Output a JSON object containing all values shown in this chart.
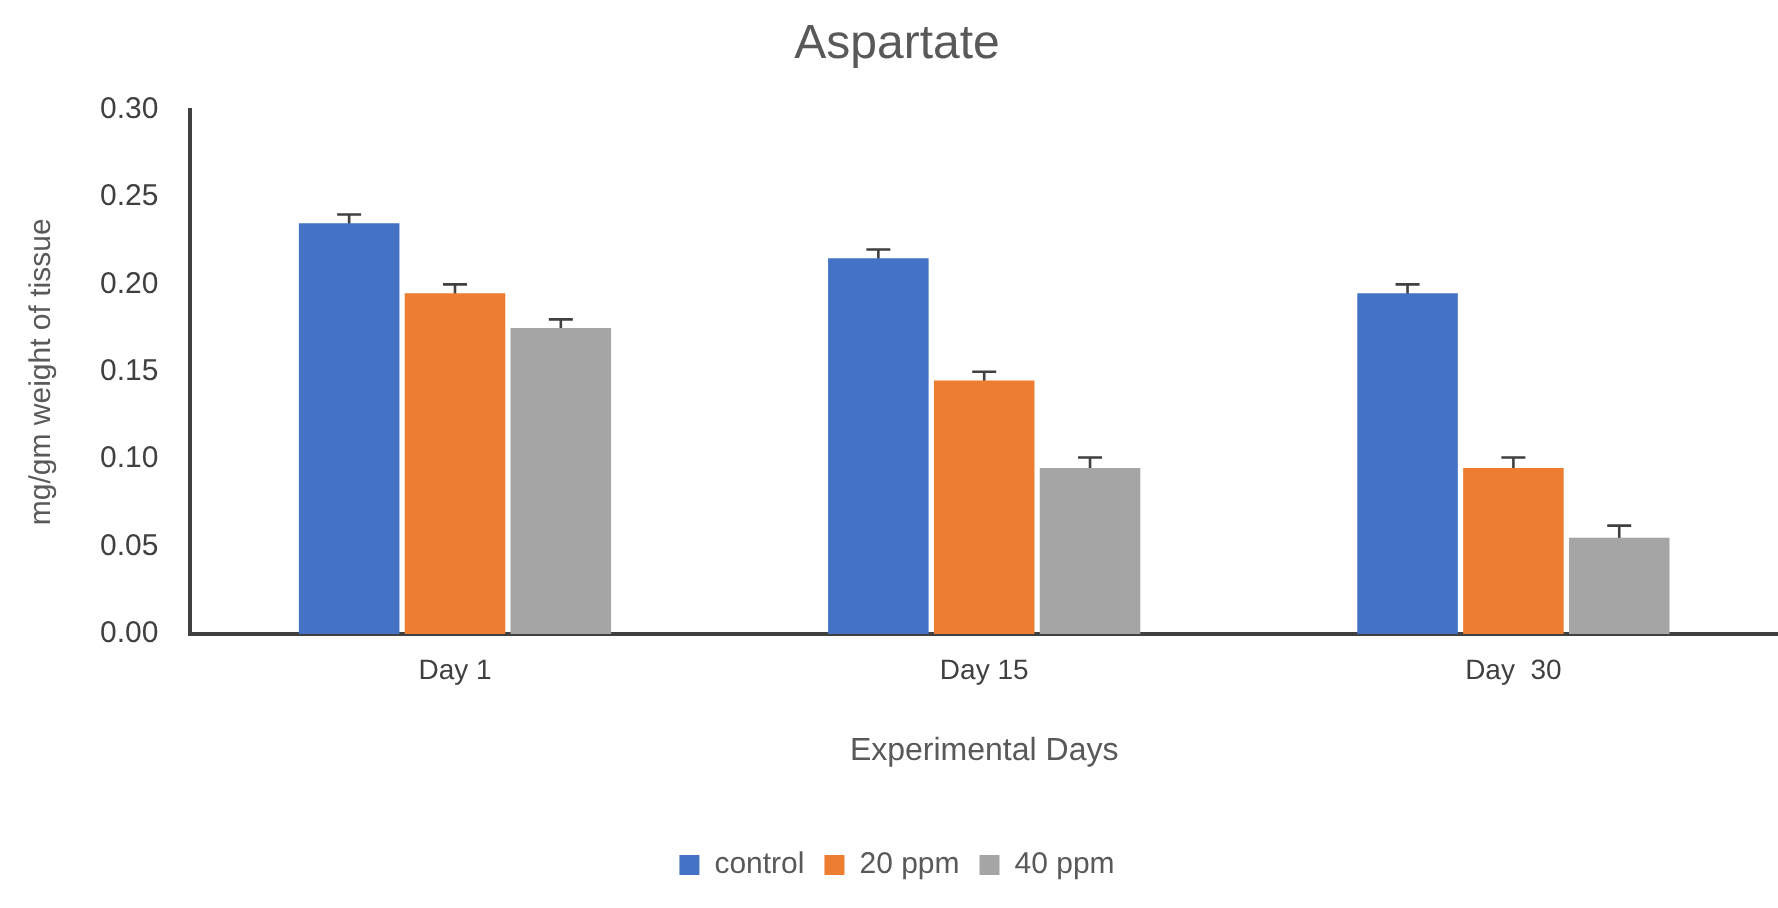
{
  "chart_data": {
    "type": "bar",
    "title": "Aspartate",
    "xlabel": "Experimental Days",
    "ylabel": "mg/gm weight of tissue",
    "categories": [
      "Day 1",
      "Day 15",
      "Day  30"
    ],
    "series": [
      {
        "name": "control",
        "color": "#4472c4",
        "values": [
          0.235,
          0.215,
          0.195
        ],
        "errors": [
          0.005,
          0.005,
          0.005
        ]
      },
      {
        "name": "20 ppm",
        "color": "#ed7d31",
        "values": [
          0.195,
          0.145,
          0.095
        ],
        "errors": [
          0.005,
          0.005,
          0.006
        ]
      },
      {
        "name": "40 ppm",
        "color": "#a5a5a5",
        "values": [
          0.175,
          0.095,
          0.055
        ],
        "errors": [
          0.005,
          0.006,
          0.007
        ]
      }
    ],
    "ylim": [
      0,
      0.3
    ],
    "yticks": [
      {
        "value": 0,
        "label": "0.00"
      },
      {
        "value": 0.05,
        "label": "0.05"
      },
      {
        "value": 0.1,
        "label": "0.10"
      },
      {
        "value": 0.15,
        "label": "0.15"
      },
      {
        "value": 0.2,
        "label": "0.20"
      },
      {
        "value": 0.25,
        "label": "0.25"
      },
      {
        "value": 0.3,
        "label": "0.30"
      }
    ],
    "grid": false,
    "legend": "bottom"
  }
}
